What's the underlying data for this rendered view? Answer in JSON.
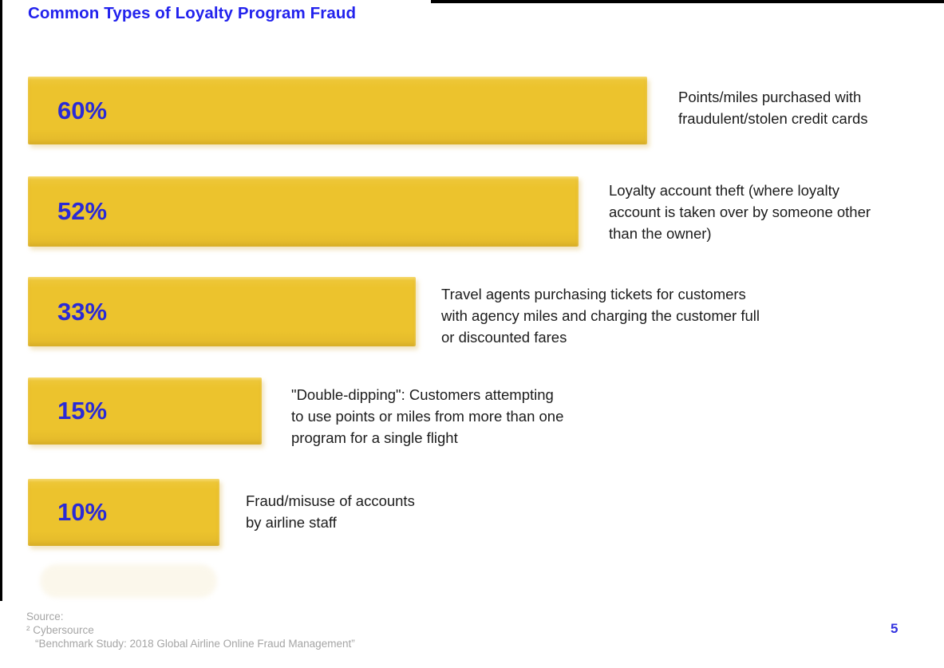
{
  "page": {
    "title": "Common Types of Loyalty Program Fraud",
    "page_number": "5",
    "colors": {
      "title_blue": "#2222ed",
      "bar_yellow": "#ecc32d",
      "percent_blue": "#2a2ad6",
      "body_text": "#1c1c1c",
      "footer_gray": "#a5a5a5"
    }
  },
  "chart_data": {
    "type": "bar",
    "orientation": "horizontal",
    "title": "Common Types of Loyalty Program Fraud",
    "unit": "%",
    "xlim": [
      0,
      60
    ],
    "grid": false,
    "legend": false,
    "categories": [
      "Points/miles purchased with fraudulent/stolen credit cards",
      "Loyalty account theft (where loyalty account is taken over by someone other than the owner)",
      "Travel agents purchasing tickets for customers with agency miles and charging the customer full or discounted fares",
      "\"Double-dipping\": Customers attempting to use points or miles from more than one program for a single flight",
      "Fraud/misuse of accounts by airline staff"
    ],
    "values": [
      60,
      52,
      33,
      15,
      10
    ],
    "rows": [
      {
        "value": 60,
        "pct": "60%",
        "label": "Points/miles purchased with fraudulent/stolen credit cards",
        "lines": [
          "Points/miles purchased with",
          "fraudulent/stolen credit cards"
        ]
      },
      {
        "value": 52,
        "pct": "52%",
        "label": "Loyalty account theft (where loyalty account is taken over by someone other than the owner)",
        "lines": [
          "Loyalty account theft (where loyalty",
          "account is taken over by someone other",
          "than the owner)"
        ]
      },
      {
        "value": 33,
        "pct": "33%",
        "label": "Travel agents purchasing tickets for customers with agency miles and charging the customer full or discounted fares",
        "lines": [
          "Travel agents purchasing tickets for customers",
          "with agency miles and charging the customer full",
          "or discounted fares"
        ]
      },
      {
        "value": 15,
        "pct": "15%",
        "label": "\"Double-dipping\": Customers attempting to use points or miles from more than one program for a single flight",
        "lines": [
          "\"Double-dipping\": Customers attempting",
          "to use points or miles from more than one",
          "program for a single flight"
        ]
      },
      {
        "value": 10,
        "pct": "10%",
        "label": "Fraud/misuse of accounts by airline staff",
        "lines": [
          "Fraud/misuse of accounts",
          "by airline staff"
        ]
      }
    ]
  },
  "footer": {
    "source_label": "Source:",
    "source_name": "² Cybersource",
    "source_citation": "“Benchmark Study: 2018 Global Airline Online Fraud Management”"
  }
}
